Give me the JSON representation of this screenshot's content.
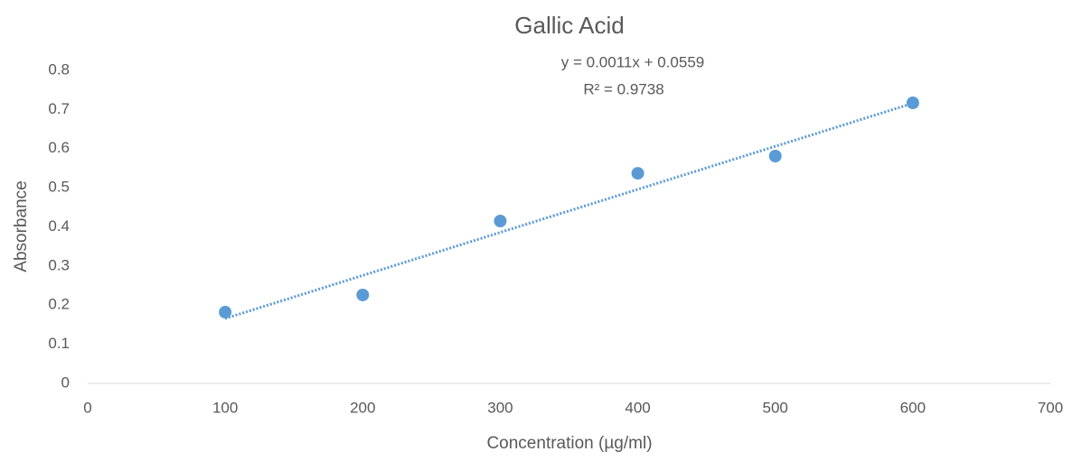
{
  "chart_data": {
    "type": "scatter",
    "title": "Gallic Acid",
    "x_label": "Concentration (µg/ml)",
    "y_label": "Absorbance",
    "series": [
      {
        "name": "Gallic Acid",
        "color": "#5b9bd5",
        "x": [
          100,
          200,
          300,
          400,
          500,
          600
        ],
        "values": [
          0.182,
          0.226,
          0.415,
          0.537,
          0.581,
          0.717
        ]
      }
    ],
    "trendline": {
      "slope": 0.0011,
      "intercept": 0.0559,
      "color": "#5b9bd5",
      "equation": "y = 0.0011x + 0.0559",
      "r2": "R² = 0.9738"
    },
    "xlim": [
      0,
      700
    ],
    "xticks": [
      0,
      100,
      200,
      300,
      400,
      500,
      600,
      700
    ],
    "ylim": [
      0,
      0.8
    ],
    "yticks": [
      0,
      0.1,
      0.2,
      0.3,
      0.4,
      0.5,
      0.6,
      0.7,
      0.8
    ],
    "grid": false
  }
}
